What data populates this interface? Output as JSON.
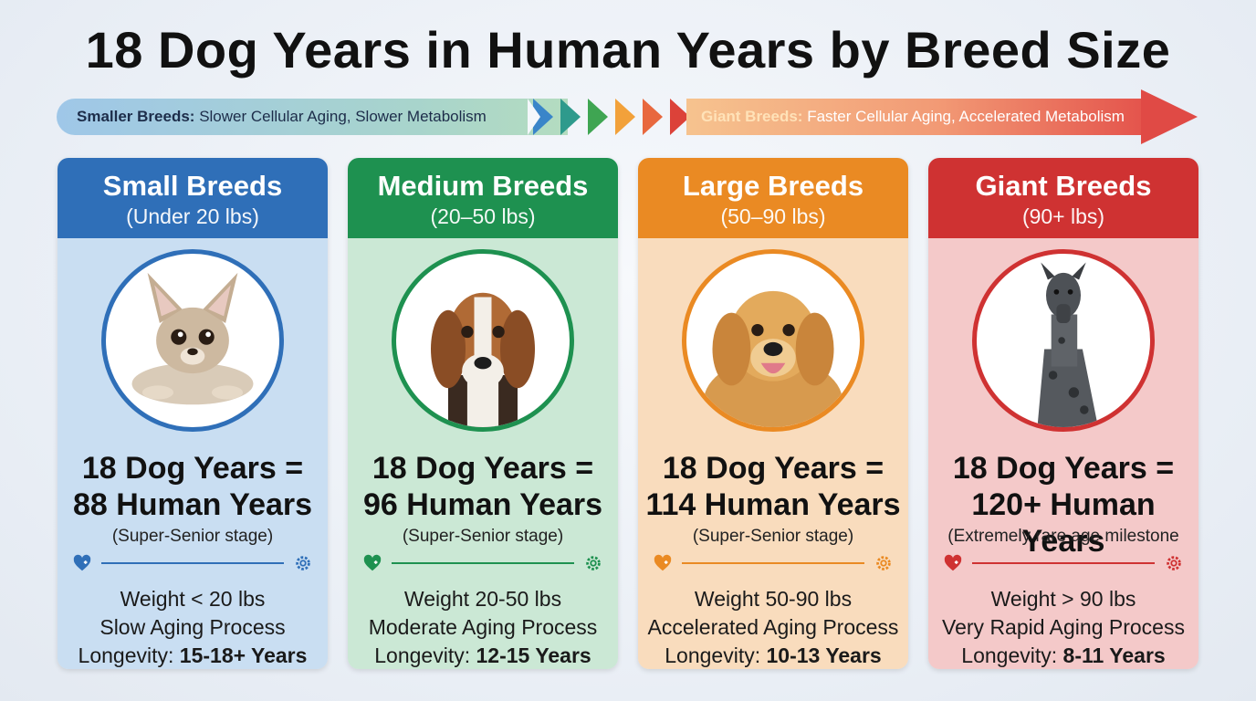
{
  "title": "18 Dog Years in Human Years by Breed Size",
  "progression": {
    "left_label": "Smaller Breeds:",
    "left_text": "Slower Cellular Aging, Slower Metabolism",
    "right_label": "Giant Breeds:",
    "right_text": "Faster Cellular Aging, Accelerated Metabolism"
  },
  "cards": [
    {
      "name": "Small Breeds",
      "weight_range": "(Under 20 lbs)",
      "result_line1": "18 Dog Years =",
      "result_line2": "88 Human Years",
      "stage": "(Super-Senior stage)",
      "weight": "Weight < 20 lbs",
      "aging": "Slow Aging Process",
      "longevity_label": "Longevity:",
      "longevity_value": "15-18+ Years",
      "color": "#2f6fb8",
      "bg": "#c9def2",
      "dog_icon": "chihuahua-icon"
    },
    {
      "name": "Medium Breeds",
      "weight_range": "(20–50 lbs)",
      "result_line1": "18 Dog Years =",
      "result_line2": "96 Human Years",
      "stage": "(Super-Senior stage)",
      "weight": "Weight 20-50 lbs",
      "aging": "Moderate Aging Process",
      "longevity_label": "Longevity:",
      "longevity_value": "12-15 Years",
      "color": "#1e9150",
      "bg": "#cbe8d5",
      "dog_icon": "beagle-icon"
    },
    {
      "name": "Large Breeds",
      "weight_range": "(50–90 lbs)",
      "result_line1": "18 Dog Years =",
      "result_line2": "114 Human Years",
      "stage": "(Super-Senior stage)",
      "weight": "Weight 50-90 lbs",
      "aging": "Accelerated Aging Process",
      "longevity_label": "Longevity:",
      "longevity_value": "10-13 Years",
      "color": "#ea8a23",
      "bg": "#f9dcbd",
      "dog_icon": "golden-retriever-icon"
    },
    {
      "name": "Giant Breeds",
      "weight_range": "(90+ lbs)",
      "result_line1": "18 Dog Years =",
      "result_line2": "120+ Human Years",
      "stage": "(Extremely rare age milestone",
      "weight": "Weight > 90 lbs",
      "aging": "Very Rapid Aging Process",
      "longevity_label": "Longevity:",
      "longevity_value": "8-11 Years",
      "color": "#cf3232",
      "bg": "#f4c9c9",
      "dog_icon": "great-dane-icon"
    }
  ]
}
